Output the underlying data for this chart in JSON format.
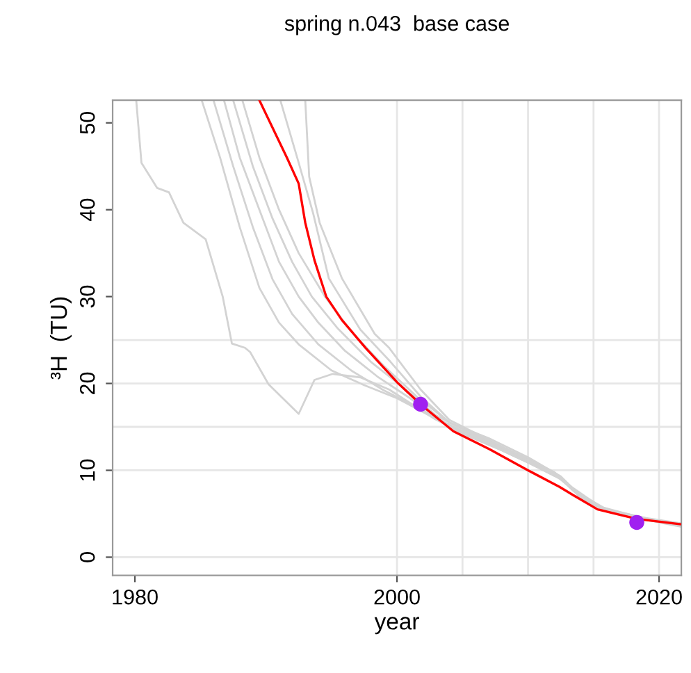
{
  "chart_data": {
    "type": "line",
    "title": "spring n.043  base case",
    "xlabel": "year",
    "ylabel": "³H  (TU)",
    "xlim": [
      1978.3,
      2021.7
    ],
    "ylim": [
      -2.1,
      52.6
    ],
    "xticks": [
      1980,
      2000,
      2020
    ],
    "yticks": [
      0,
      10,
      20,
      30,
      40,
      50
    ],
    "grid": false,
    "legend": false,
    "marker": "none",
    "line_style": "solid",
    "ref_lines": [
      {
        "axis": "y",
        "value": 0,
        "color": "#e6e6e6"
      },
      {
        "axis": "y",
        "value": 10,
        "color": "#e6e6e6"
      },
      {
        "axis": "y",
        "value": 15,
        "color": "#e6e6e6"
      },
      {
        "axis": "y",
        "value": 20,
        "color": "#e6e6e6"
      },
      {
        "axis": "y",
        "value": 25,
        "color": "#e6e6e6"
      },
      {
        "axis": "x",
        "value": 2000,
        "color": "#e6e6e6"
      },
      {
        "axis": "x",
        "value": 2005,
        "color": "#e6e6e6"
      },
      {
        "axis": "x",
        "value": 2010,
        "color": "#e6e6e6"
      },
      {
        "axis": "x",
        "value": 2015,
        "color": "#e6e6e6"
      },
      {
        "axis": "x",
        "value": 2020,
        "color": "#e6e6e6"
      }
    ],
    "series": [
      {
        "color": "#d3d3d3",
        "x": [
          1980.1,
          1980.5,
          1981.7,
          1982.6,
          1983.7,
          1985.4,
          1986.7,
          1987.4,
          1988.4,
          1988.8,
          1990.2,
          1992.5,
          1993.7,
          1995.1,
          1997.2,
          1999.4,
          2002.9,
          2005,
          2008,
          2010,
          2012.5,
          2013.5,
          2015,
          2018,
          2021.7
        ],
        "values": [
          52.6,
          45.4,
          42.5,
          42.0,
          38.5,
          36.6,
          30.0,
          24.6,
          24.1,
          23.6,
          19.9,
          16.5,
          20.4,
          21.1,
          20.7,
          19.3,
          15.9,
          14.3,
          12.3,
          10.9,
          9.0,
          7.6,
          6.0,
          4.6,
          3.6
        ]
      },
      {
        "color": "#d3d3d3",
        "x": [
          1985.1,
          1986.5,
          1988,
          1989.5,
          1991,
          1992.5,
          1995,
          1997.5,
          2000,
          2002.5,
          2005,
          2008,
          2010,
          2012.5,
          2013.5,
          2015,
          2018,
          2021.7
        ],
        "values": [
          52.6,
          46,
          38,
          31,
          27,
          24.5,
          21.5,
          19.8,
          18.3,
          16.3,
          14.2,
          12.3,
          10.9,
          9.0,
          7.6,
          6.0,
          4.6,
          3.6
        ]
      },
      {
        "color": "#d3d3d3",
        "x": [
          1986,
          1987.5,
          1989,
          1990.5,
          1992,
          1994,
          1996.5,
          1999,
          2001.5,
          2004,
          2007,
          2010,
          2012.8,
          2014,
          2016,
          2019,
          2021.7
        ],
        "values": [
          52.6,
          45,
          38,
          32,
          28,
          24.5,
          21.5,
          19.2,
          17.3,
          15.2,
          13.2,
          11.1,
          8.8,
          6.8,
          5.3,
          4.3,
          3.7
        ]
      },
      {
        "color": "#d3d3d3",
        "x": [
          1986.8,
          1988,
          1989.5,
          1991,
          1992.5,
          1994,
          1996,
          1998.5,
          2001,
          2003.5,
          2006,
          2009,
          2012,
          2013.3,
          2015,
          2018,
          2021.7
        ],
        "values": [
          52.6,
          46,
          40,
          34,
          30,
          27,
          23.8,
          20.8,
          18.3,
          15.6,
          13.8,
          11.6,
          9.5,
          8.0,
          6.0,
          4.7,
          3.8
        ]
      },
      {
        "color": "#d3d3d3",
        "x": [
          1987.5,
          1989,
          1990.5,
          1992,
          1993.5,
          1995.5,
          1998,
          2000.5,
          2003,
          2006,
          2009,
          2012,
          2013.4,
          2015.5,
          2019,
          2021.7
        ],
        "values": [
          52.6,
          45,
          39,
          34,
          30,
          26.3,
          22.5,
          19.5,
          16.3,
          14.0,
          12.0,
          9.8,
          8.0,
          5.8,
          4.4,
          3.7
        ]
      },
      {
        "color": "#d3d3d3",
        "x": [
          1988.2,
          1989.5,
          1991,
          1992.5,
          1994.5,
          1996.5,
          1999,
          2001.5,
          2004,
          2007,
          2010,
          2012.5,
          2013.6,
          2016,
          2019,
          2021.7
        ],
        "values": [
          52.6,
          46,
          40,
          35,
          30,
          26,
          22,
          18.5,
          15.5,
          13.4,
          11.3,
          9.2,
          7.6,
          5.4,
          4.4,
          3.6
        ]
      },
      {
        "color": "#d3d3d3",
        "x": [
          1991.1,
          1992.5,
          1993.6,
          1994.8,
          1997.2,
          1999.5,
          2001.8,
          2004,
          2007,
          2010,
          2012.5,
          2013.7,
          2016,
          2019,
          2021.7
        ],
        "values": [
          52.6,
          45.4,
          39.6,
          32.1,
          26.2,
          22.5,
          18.5,
          15.5,
          13.7,
          11.5,
          9.3,
          7.5,
          5.5,
          4.5,
          3.9
        ]
      },
      {
        "color": "#d3d3d3",
        "x": [
          1993.0,
          1993.3,
          1994.1,
          1995.8,
          1998.3,
          1999.4,
          2001.8,
          2004,
          2007,
          2010,
          2012.6,
          2014,
          2016,
          2019,
          2021.7
        ],
        "values": [
          52.6,
          43.8,
          38.5,
          32.1,
          25.7,
          24.1,
          19.3,
          15.8,
          13.5,
          11.2,
          9.0,
          7.0,
          5.3,
          4.3,
          3.5
        ]
      },
      {
        "color": "#ff0000",
        "x": [
          1989.5,
          1991.6,
          1992.5,
          1993.0,
          1993.7,
          1994.6,
          1995.8,
          1997.6,
          2000.1,
          2001.8,
          2004.3,
          2007.1,
          2010.0,
          2012.4,
          2013.5,
          2015.3,
          2018.3,
          2021.6
        ],
        "values": [
          52.6,
          46.0,
          43.0,
          38.5,
          34.2,
          30.0,
          27.3,
          24.1,
          20.0,
          17.6,
          14.5,
          12.4,
          10.0,
          8.1,
          7.1,
          5.5,
          4.4,
          3.8
        ]
      },
      {
        "type": "scatter",
        "marker": "circle",
        "color": "#a020f0",
        "x": [
          2001.8,
          2018.3
        ],
        "values": [
          17.6,
          4.0
        ]
      }
    ]
  }
}
